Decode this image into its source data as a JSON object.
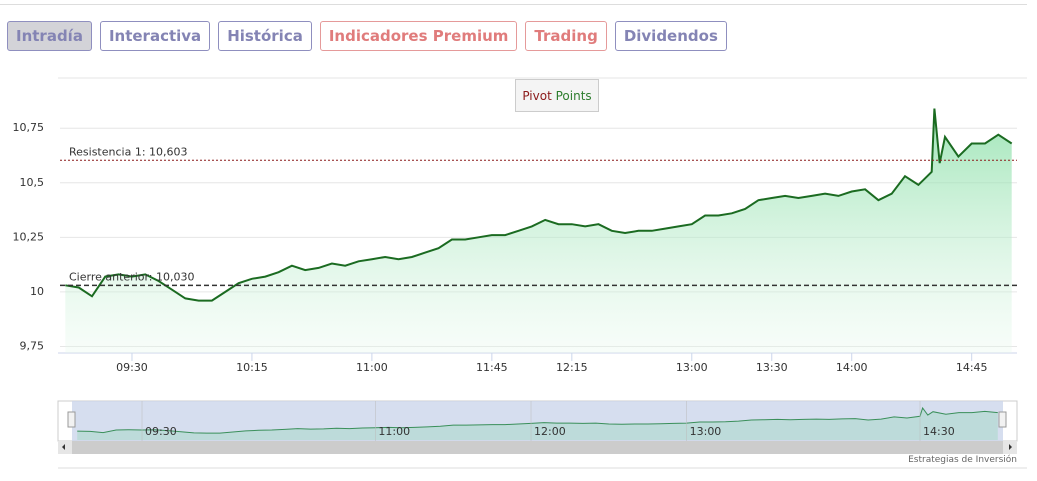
{
  "tabs": [
    "Intradía",
    "Interactiva",
    "Histórica",
    "Indicadores Premium",
    "Trading",
    "Dividendos"
  ],
  "pivot_button": [
    "Pivot",
    "Points"
  ],
  "credit": "Estrategias de Inversión",
  "chart_data": {
    "type": "area",
    "x": [
      "09:05",
      "09:10",
      "09:15",
      "09:20",
      "09:25",
      "09:30",
      "09:35",
      "09:40",
      "09:45",
      "09:50",
      "09:55",
      "10:00",
      "10:05",
      "10:10",
      "10:15",
      "10:20",
      "10:25",
      "10:30",
      "10:35",
      "10:40",
      "10:45",
      "10:50",
      "10:55",
      "11:00",
      "11:05",
      "11:10",
      "11:15",
      "11:20",
      "11:25",
      "11:30",
      "11:35",
      "11:40",
      "11:45",
      "11:50",
      "11:55",
      "12:00",
      "12:05",
      "12:10",
      "12:15",
      "12:20",
      "12:25",
      "12:30",
      "12:35",
      "12:40",
      "12:45",
      "12:50",
      "12:55",
      "13:00",
      "13:05",
      "13:10",
      "13:15",
      "13:20",
      "13:25",
      "13:30",
      "13:35",
      "13:40",
      "13:45",
      "13:50",
      "13:55",
      "14:00",
      "14:05",
      "14:10",
      "14:15",
      "14:20",
      "14:25",
      "14:30",
      "14:31",
      "14:33",
      "14:35",
      "14:40",
      "14:45",
      "14:50",
      "14:55",
      "15:00"
    ],
    "series": [
      {
        "color": "#1b6b21",
        "values": [
          10.03,
          10.02,
          9.98,
          10.07,
          10.08,
          10.07,
          10.08,
          10.05,
          10.01,
          9.97,
          9.96,
          9.96,
          10.0,
          10.04,
          10.06,
          10.07,
          10.09,
          10.12,
          10.1,
          10.11,
          10.13,
          10.12,
          10.14,
          10.15,
          10.16,
          10.15,
          10.16,
          10.18,
          10.2,
          10.24,
          10.24,
          10.25,
          10.26,
          10.26,
          10.28,
          10.3,
          10.33,
          10.31,
          10.31,
          10.3,
          10.31,
          10.28,
          10.27,
          10.28,
          10.28,
          10.29,
          10.3,
          10.31,
          10.35,
          10.35,
          10.36,
          10.38,
          10.42,
          10.43,
          10.44,
          10.43,
          10.44,
          10.45,
          10.44,
          10.46,
          10.47,
          10.42,
          10.45,
          10.53,
          10.49,
          10.55,
          10.84,
          10.59,
          10.71,
          10.62,
          10.68,
          10.68,
          10.72,
          10.68
        ]
      }
    ],
    "xlim": [
      "09:03",
      "15:02"
    ],
    "xticks": [
      "09:30",
      "10:15",
      "11:00",
      "11:45",
      "12:15",
      "13:00",
      "13:30",
      "14:00",
      "14:45"
    ],
    "ylim": [
      9.72,
      10.98
    ],
    "yticks": [
      {
        "value": 9.75,
        "label": "9,75"
      },
      10,
      {
        "value": 10.25,
        "label": "10,25"
      },
      {
        "value": 10.5,
        "label": "10,5"
      },
      {
        "value": 10.75,
        "label": "10,75"
      }
    ],
    "reference_lines": [
      {
        "label": "Resistencia 1: 10,603",
        "value": 10.603,
        "color": "#8b1a1a",
        "style": "dotted"
      },
      {
        "label": "Cierre anterior: 10,030",
        "value": 10.03,
        "color": "#333333",
        "style": "dashed"
      }
    ],
    "navigator_xticks": [
      "09:30",
      "11:00",
      "12:00",
      "13:00",
      "14:30"
    ],
    "grid": true
  }
}
